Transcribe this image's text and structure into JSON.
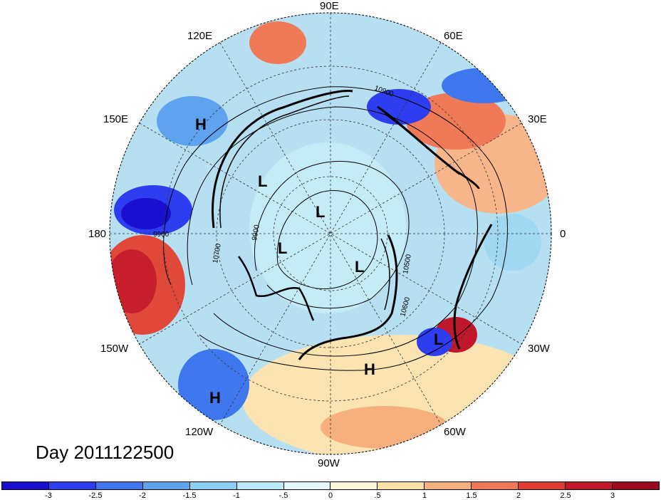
{
  "map": {
    "lon_labels": {
      "lon_90e": "90E",
      "lon_60e": "60E",
      "lon_30e": "30E",
      "lon_0": "0",
      "lon_30w": "30W",
      "lon_60w": "60W",
      "lon_90w": "90W",
      "lon_120w": "120W",
      "lon_150w": "150W",
      "lon_180": "180",
      "lon_150e": "150E",
      "lon_120e": "120E"
    },
    "pressure_centers": [
      "H",
      "L",
      "L",
      "L",
      "L",
      "H",
      "H",
      "L"
    ],
    "contour_labels": [
      "10900",
      "9900",
      "10700",
      "10500",
      "10600",
      "9900"
    ]
  },
  "title": {
    "day_label": "Day 2011122500"
  },
  "colorbar": {
    "ticks": [
      "-3",
      "-2.5",
      "-2",
      "-1.5",
      "-1",
      "-.5",
      "0",
      ".5",
      "1",
      "1.5",
      "2",
      "2.5",
      "3"
    ],
    "colors": [
      "#1a0fd0",
      "#2d3df0",
      "#3f78ee",
      "#5fa3ef",
      "#8ccff2",
      "#b9ecf8",
      "#e4f7fa",
      "#fcf6d8",
      "#fae0a4",
      "#f6b07e",
      "#f07a58",
      "#e03a35",
      "#c1172a",
      "#9a0a1e"
    ]
  },
  "colors": {
    "cold": "#2d3df0",
    "warm": "#e03a35",
    "neutral_cold": "#a8dcf0",
    "neutral_warm": "#fbe6b6"
  }
}
